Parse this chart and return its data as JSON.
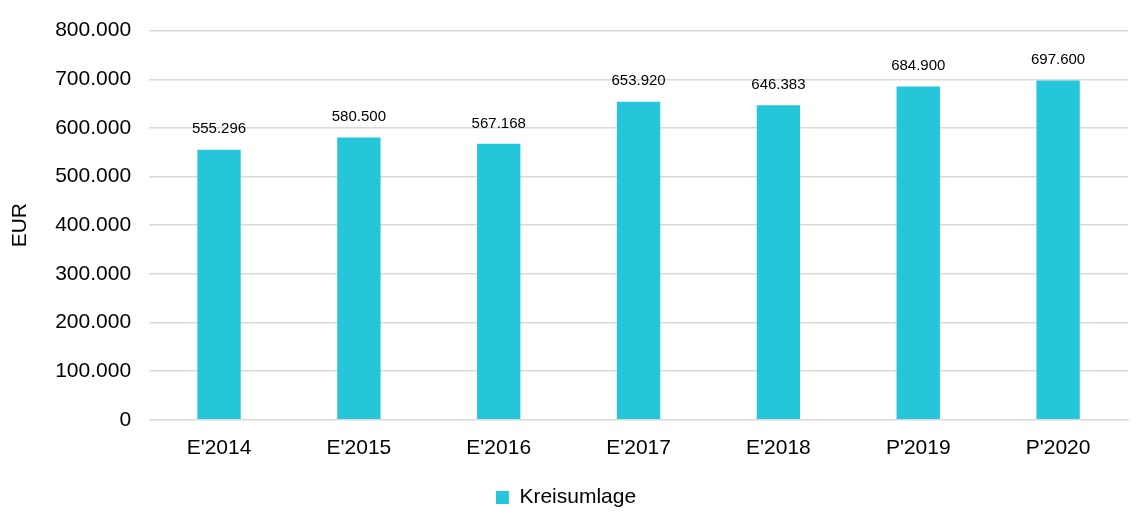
{
  "chart_data": {
    "type": "bar",
    "ylabel": "EUR",
    "categories": [
      "E'2014",
      "E'2015",
      "E'2016",
      "E'2017",
      "E'2018",
      "P'2019",
      "P'2020"
    ],
    "series": [
      {
        "name": "Kreisumlage",
        "color": "#26c6da",
        "values": [
          555296,
          580500,
          567168,
          653920,
          646383,
          684900,
          697600
        ],
        "value_labels": [
          "555.296",
          "580.500",
          "567.168",
          "653.920",
          "646.383",
          "684.900",
          "697.600"
        ]
      }
    ],
    "ylim": [
      0,
      800000
    ],
    "yticks": [
      {
        "value": 0,
        "label": "0"
      },
      {
        "value": 100000,
        "label": "100.000"
      },
      {
        "value": 200000,
        "label": "200.000"
      },
      {
        "value": 300000,
        "label": "300.000"
      },
      {
        "value": 400000,
        "label": "400.000"
      },
      {
        "value": 500000,
        "label": "500.000"
      },
      {
        "value": 600000,
        "label": "600.000"
      },
      {
        "value": 700000,
        "label": "700.000"
      },
      {
        "value": 800000,
        "label": "800.000"
      }
    ],
    "grid": "y",
    "legend": "bottom"
  }
}
